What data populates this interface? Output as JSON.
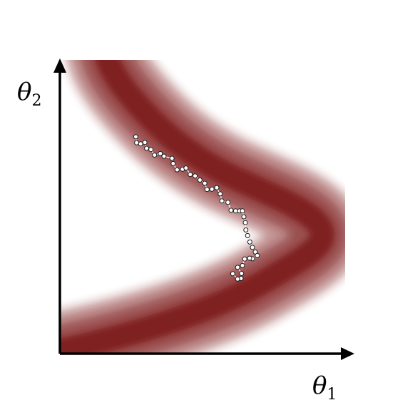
{
  "axes": {
    "x_symbol": "θ",
    "x_subscript": "1",
    "y_symbol": "θ",
    "y_subscript": "2"
  },
  "colors": {
    "density": "#7a1515",
    "axis": "#000000",
    "chain_fill": "#ffffff",
    "chain_stroke": "#1a1a1a"
  },
  "chain_samples": [
    [
      0.266,
      0.738
    ],
    [
      0.269,
      0.718
    ],
    [
      0.283,
      0.714
    ],
    [
      0.298,
      0.719
    ],
    [
      0.304,
      0.699
    ],
    [
      0.319,
      0.695
    ],
    [
      0.332,
      0.676
    ],
    [
      0.352,
      0.681
    ],
    [
      0.365,
      0.672
    ],
    [
      0.393,
      0.665
    ],
    [
      0.397,
      0.647
    ],
    [
      0.411,
      0.626
    ],
    [
      0.43,
      0.628
    ],
    [
      0.442,
      0.632
    ],
    [
      0.457,
      0.61
    ],
    [
      0.474,
      0.605
    ],
    [
      0.491,
      0.591
    ],
    [
      0.508,
      0.58
    ],
    [
      0.516,
      0.559
    ],
    [
      0.533,
      0.56
    ],
    [
      0.55,
      0.565
    ],
    [
      0.562,
      0.544
    ],
    [
      0.568,
      0.52
    ],
    [
      0.589,
      0.515
    ],
    [
      0.6,
      0.488
    ],
    [
      0.616,
      0.486
    ],
    [
      0.63,
      0.486
    ],
    [
      0.64,
      0.486
    ],
    [
      0.645,
      0.466
    ],
    [
      0.65,
      0.446
    ],
    [
      0.652,
      0.421
    ],
    [
      0.658,
      0.402
    ],
    [
      0.666,
      0.38
    ],
    [
      0.675,
      0.362
    ],
    [
      0.685,
      0.346
    ],
    [
      0.692,
      0.334
    ],
    [
      0.675,
      0.323
    ],
    [
      0.665,
      0.325
    ],
    [
      0.648,
      0.322
    ],
    [
      0.64,
      0.3
    ],
    [
      0.623,
      0.294
    ],
    [
      0.637,
      0.273
    ],
    [
      0.635,
      0.256
    ],
    [
      0.623,
      0.254
    ],
    [
      0.606,
      0.272
    ]
  ]
}
